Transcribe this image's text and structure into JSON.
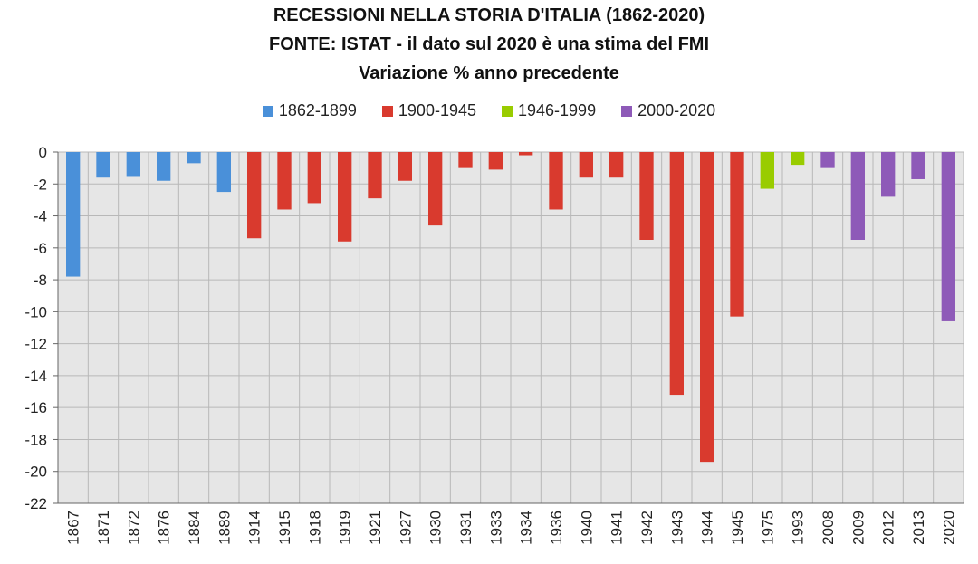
{
  "chart_data": {
    "type": "bar",
    "title": "RECESSIONI NELLA STORIA D'ITALIA (1862-2020)",
    "subtitle": "FONTE: ISTAT - il dato sul 2020 è una stima del FMI",
    "subtitle2": "Variazione % anno precedente",
    "categories": [
      "1867",
      "1871",
      "1872",
      "1876",
      "1884",
      "1889",
      "1914",
      "1915",
      "1918",
      "1919",
      "1921",
      "1927",
      "1930",
      "1931",
      "1933",
      "1934",
      "1936",
      "1940",
      "1941",
      "1942",
      "1943",
      "1944",
      "1945",
      "1975",
      "1993",
      "2008",
      "2009",
      "2012",
      "2013",
      "2020"
    ],
    "values": [
      -7.8,
      -1.6,
      -1.5,
      -1.8,
      -0.7,
      -2.5,
      -5.4,
      -3.6,
      -3.2,
      -5.6,
      -2.9,
      -1.8,
      -4.6,
      -1.0,
      -1.1,
      -0.2,
      -3.6,
      -1.6,
      -1.6,
      -5.5,
      -15.2,
      -19.4,
      -10.3,
      -2.3,
      -0.8,
      -1.0,
      -5.5,
      -2.8,
      -1.7,
      -10.6
    ],
    "groups": [
      0,
      0,
      0,
      0,
      0,
      0,
      1,
      1,
      1,
      1,
      1,
      1,
      1,
      1,
      1,
      1,
      1,
      1,
      1,
      1,
      1,
      1,
      1,
      2,
      2,
      3,
      3,
      3,
      3,
      3
    ],
    "series": [
      {
        "name": "1862-1899",
        "color": "#4a90d9"
      },
      {
        "name": "1900-1945",
        "color": "#d93a2e"
      },
      {
        "name": "1946-1999",
        "color": "#99cc00"
      },
      {
        "name": "2000-2020",
        "color": "#8e5ab8"
      }
    ],
    "ylim": [
      -22,
      0
    ],
    "yticks": [
      0,
      -2,
      -4,
      -6,
      -8,
      -10,
      -12,
      -14,
      -16,
      -18,
      -20,
      -22
    ],
    "grid": true,
    "legend_position": "top"
  },
  "colors": {
    "plot_background": "#e6e6e6",
    "grid": "#b8b8b8",
    "axis": "#666666"
  }
}
